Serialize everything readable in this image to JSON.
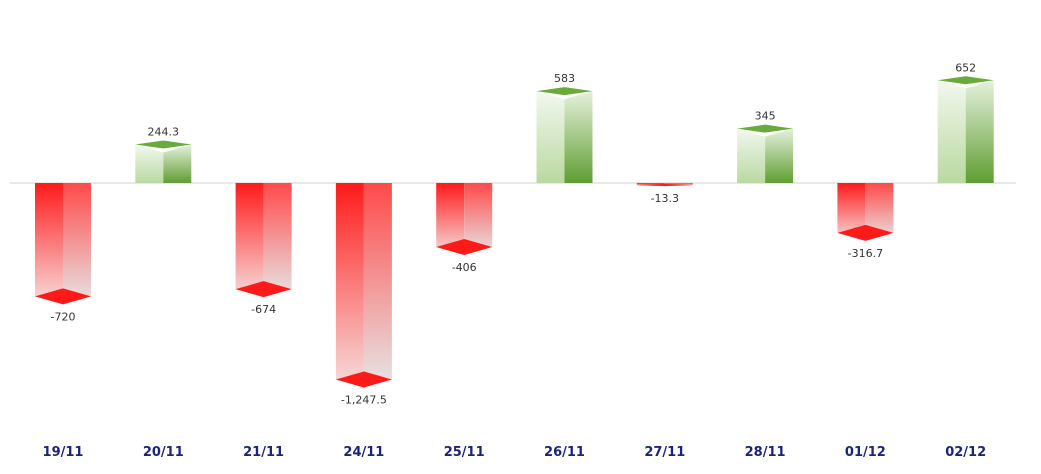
{
  "chart_data": {
    "type": "bar",
    "categories": [
      "19/11",
      "20/11",
      "21/11",
      "24/11",
      "25/11",
      "26/11",
      "27/11",
      "28/11",
      "01/12",
      "02/12"
    ],
    "values": [
      -720,
      244.3,
      -674,
      -1247.5,
      -406,
      583,
      -13.3,
      345,
      -316.7,
      652
    ],
    "value_labels": [
      "-720",
      "244.3",
      "-674",
      "-1,247.5",
      "-406",
      "583",
      "-13.3",
      "345",
      "-316.7",
      "652"
    ],
    "title": "",
    "xlabel": "",
    "ylabel": "",
    "ylim": [
      -1350,
      850
    ],
    "grid": false,
    "legend": "none",
    "style": "3d-bars",
    "colors": {
      "positive": "#6aaa3a",
      "positive_light": "#e8f3e0",
      "negative": "#ff1a1a",
      "negative_light": "#eeeeee",
      "category_text": "#1a237e",
      "baseline": "#d0d0d0"
    }
  }
}
